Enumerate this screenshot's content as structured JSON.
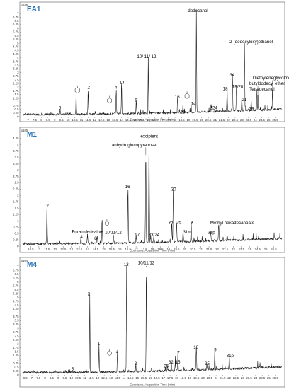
{
  "chart_data": [
    {
      "type": "line",
      "panel_label": "EA1",
      "y_scale_label": "x10^5",
      "ylim": [
        0,
        7.25
      ],
      "y_ticks": [
        "0",
        "0.25",
        "0.5",
        "0.75",
        "1",
        "1.25",
        "1.5",
        "1.75",
        "2",
        "2.25",
        "2.5",
        "2.75",
        "3",
        "3.25",
        "3.5",
        "3.75",
        "4",
        "4.25",
        "4.5",
        "4.75",
        "5",
        "5.25",
        "5.5",
        "5.75",
        "6",
        "6.25",
        "6.5",
        "6.75",
        "7"
      ],
      "xlim": [
        6.6,
        26.0
      ],
      "x_ticks": [
        "7",
        "7.5",
        "8",
        "8.5",
        "9",
        "9.5",
        "10",
        "10.5",
        "11",
        "11.5",
        "12",
        "12.5",
        "13",
        "13.5",
        "14",
        "14.5",
        "15",
        "15.5",
        "16",
        "16.5",
        "17",
        "17.5",
        "18",
        "18.5",
        "19",
        "19.5",
        "20",
        "20.5",
        "21",
        "21.5",
        "22",
        "22.5",
        "23",
        "23.5",
        "24",
        "24.5",
        "25",
        "25.5"
      ],
      "xlabel": "Counts vs. Acquisition Time (min)",
      "peaks": [
        {
          "x": 9.4,
          "y": 0.35,
          "label": "3"
        },
        {
          "x": 10.6,
          "y": 1.4,
          "label": ""
        },
        {
          "x": 11.5,
          "y": 1.75,
          "label": "2"
        },
        {
          "x": 13.6,
          "y": 1.75,
          "label": "4"
        },
        {
          "x": 14.0,
          "y": 2.1,
          "label": "13"
        },
        {
          "x": 15.1,
          "y": 0.9,
          "label": "8"
        },
        {
          "x": 16.0,
          "y": 3.85,
          "label": "10/ 11/ 12"
        },
        {
          "x": 18.2,
          "y": 1.1,
          "label": "16"
        },
        {
          "x": 18.6,
          "y": 0.6,
          "label": "25"
        },
        {
          "x": 19.2,
          "y": 0.7,
          "label": "14"
        },
        {
          "x": 19.6,
          "y": 6.95,
          "label": "dodecanol"
        },
        {
          "x": 20.7,
          "y": 0.5,
          "label": "24"
        },
        {
          "x": 21.9,
          "y": 1.65,
          "label": "18"
        },
        {
          "x": 22.3,
          "y": 2.6,
          "label": "34"
        },
        {
          "x": 22.6,
          "y": 1.8,
          "label": "19/20"
        },
        {
          "x": 23.0,
          "y": 1.0,
          "label": "21"
        },
        {
          "x": 23.2,
          "y": 4.6,
          "label": "2-(dodecyloxy)ethanol"
        },
        {
          "x": 23.7,
          "y": 0.85,
          "label": "29"
        },
        {
          "x": 24.1,
          "y": 1.5,
          "label": "Tetradecanol"
        },
        {
          "x": 24.2,
          "y": 1.2,
          "label": "butyldodecyl ether"
        },
        {
          "x": 25.3,
          "y": 1.2,
          "label": "Diethyleneglycolmonododecyl ether"
        }
      ]
    },
    {
      "type": "line",
      "panel_label": "M1",
      "y_scale_label": "x10^5",
      "ylim": [
        0,
        4.35
      ],
      "y_ticks": [
        "0",
        "0.25",
        "0.5",
        "0.75",
        "1",
        "1.25",
        "1.5",
        "1.75",
        "2",
        "2.25",
        "2.5",
        "2.75",
        "3",
        "3.25",
        "3.5",
        "3.75",
        "4",
        "4.25"
      ],
      "xlim": [
        10.0,
        26.0
      ],
      "x_ticks": [
        "10.5",
        "11",
        "11.5",
        "12",
        "12.5",
        "13",
        "13.5",
        "14",
        "14.5",
        "15",
        "15.5",
        "16",
        "16.5",
        "17",
        "17.5",
        "18",
        "18.5",
        "19",
        "19.5",
        "20",
        "20.5",
        "21",
        "21.5",
        "22",
        "22.5",
        "23",
        "23.5",
        "24",
        "24.5",
        "25",
        "25.5"
      ],
      "xlabel": "Counts vs. Acquisition Time (min)",
      "peaks": [
        {
          "x": 11.5,
          "y": 1.45,
          "label": "2"
        },
        {
          "x": 13.6,
          "y": 0.22,
          "label": "4"
        },
        {
          "x": 14.0,
          "y": 0.35,
          "label": "Furan derivative"
        },
        {
          "x": 14.6,
          "y": 0.3,
          "label": "8"
        },
        {
          "x": 14.9,
          "y": 1.0,
          "label": ""
        },
        {
          "x": 15.6,
          "y": 0.35,
          "label": "10/11/12"
        },
        {
          "x": 16.5,
          "y": 2.2,
          "label": "16"
        },
        {
          "x": 17.0,
          "y": 0.3,
          "label": "17"
        },
        {
          "x": 17.6,
          "y": 3.6,
          "label": "anhydroglucopyranose"
        },
        {
          "x": 17.8,
          "y": 4.2,
          "label": "excipient"
        },
        {
          "x": 17.9,
          "y": 0.3,
          "label": "33"
        },
        {
          "x": 18.1,
          "y": 0.3,
          "label": "24"
        },
        {
          "x": 19.2,
          "y": 0.8,
          "label": "34"
        },
        {
          "x": 19.3,
          "y": 2.1,
          "label": "30"
        },
        {
          "x": 19.5,
          "y": 0.8,
          "label": "35"
        },
        {
          "x": 19.9,
          "y": 0.45,
          "label": "31m"
        },
        {
          "x": 20.4,
          "y": 0.8,
          "label": "9"
        },
        {
          "x": 21.6,
          "y": 0.4,
          "label": "31p"
        },
        {
          "x": 22.1,
          "y": 0.7,
          "label": "Methyl hexadecanoate"
        }
      ]
    },
    {
      "type": "line",
      "panel_label": "M4",
      "y_scale_label": "x10^4",
      "ylim": [
        0,
        7.3
      ],
      "y_ticks": [
        "0",
        "0.25",
        "0.5",
        "0.75",
        "1",
        "1.25",
        "1.5",
        "1.75",
        "2",
        "2.25",
        "2.5",
        "2.75",
        "3",
        "3.25",
        "3.5",
        "3.75",
        "4",
        "4.25",
        "4.5",
        "4.75",
        "5",
        "5.25",
        "5.5",
        "5.75",
        "6",
        "6.25",
        "6.5",
        "6.75",
        "7"
      ],
      "xlim": [
        6.3,
        26.0
      ],
      "x_ticks": [
        "6.5",
        "7",
        "7.5",
        "8",
        "8.5",
        "9",
        "9.5",
        "10",
        "10.5",
        "11",
        "11.5",
        "12",
        "12.5",
        "13",
        "13.5",
        "14",
        "14.5",
        "15",
        "15.5",
        "16",
        "16.5",
        "17",
        "17.5",
        "18",
        "18.5",
        "19",
        "19.5",
        "20",
        "20.5",
        "21",
        "21.5",
        "22",
        "22.5",
        "23",
        "23.5",
        "24",
        "24.5",
        "25",
        "25.5"
      ],
      "xlabel": "Counts vs. Acquisition Time (min)",
      "peaks": [
        {
          "x": 10.1,
          "y": 0.15,
          "label": "3"
        },
        {
          "x": 11.4,
          "y": 5.0,
          "label": "2"
        },
        {
          "x": 12.1,
          "y": 1.8,
          "label": "1"
        },
        {
          "x": 13.5,
          "y": 1.25,
          "label": "4"
        },
        {
          "x": 14.2,
          "y": 6.9,
          "label": "13"
        },
        {
          "x": 14.9,
          "y": 0.5,
          "label": "8"
        },
        {
          "x": 15.7,
          "y": 7.0,
          "label": "10/11/12"
        },
        {
          "x": 17.3,
          "y": 0.35,
          "label": "25"
        },
        {
          "x": 17.6,
          "y": 0.6,
          "label": "32"
        },
        {
          "x": 17.9,
          "y": 0.6,
          "label": "15"
        },
        {
          "x": 18.1,
          "y": 1.2,
          "label": "7"
        },
        {
          "x": 19.5,
          "y": 1.55,
          "label": "18"
        },
        {
          "x": 20.3,
          "y": 0.5,
          "label": "35"
        },
        {
          "x": 20.9,
          "y": 1.4,
          "label": "9"
        },
        {
          "x": 22.0,
          "y": 1.0,
          "label": "31p"
        }
      ]
    }
  ]
}
